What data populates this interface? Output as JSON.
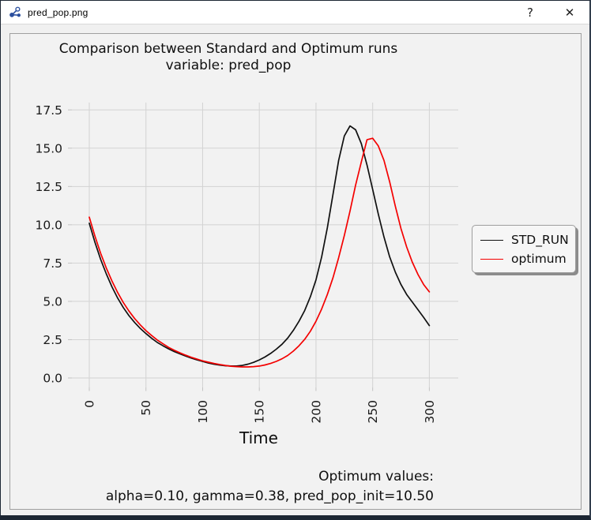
{
  "window": {
    "title": "pred_pop.png",
    "help_glyph": "?",
    "close_glyph": "✕",
    "icons": {
      "app": "molecule-icon",
      "help": "help-icon",
      "close": "close-icon"
    }
  },
  "colors": {
    "window_bg": "#f0f0f0",
    "titlebar_bg": "#ffffff",
    "figure_bg": "#f2f2f2",
    "grid": "#d3d3d3",
    "std_run": "#101010",
    "optimum": "#f40000",
    "legend_shadow": "#8c8c8c"
  },
  "chart_data": {
    "type": "line",
    "title_line1": "Comparison between Standard and Optimum runs",
    "title_line2": "variable: pred_pop",
    "xlabel": "Time",
    "ylabel": "",
    "grid": true,
    "xlim": [
      -15,
      325
    ],
    "ylim": [
      -0.65,
      18.1
    ],
    "x_ticks": [
      0,
      50,
      100,
      150,
      200,
      250,
      300
    ],
    "y_ticks": [
      "0.0",
      "2.5",
      "5.0",
      "7.5",
      "10.0",
      "12.5",
      "15.0",
      "17.5"
    ],
    "legend": {
      "position": "right-outside",
      "entries": [
        {
          "label": "STD_RUN",
          "color": "#101010"
        },
        {
          "label": "optimum",
          "color": "#f40000"
        }
      ]
    },
    "x": [
      0,
      5,
      10,
      15,
      20,
      25,
      30,
      35,
      40,
      45,
      50,
      55,
      60,
      65,
      70,
      75,
      80,
      85,
      90,
      95,
      100,
      105,
      110,
      115,
      120,
      125,
      130,
      135,
      140,
      145,
      150,
      155,
      160,
      165,
      170,
      175,
      180,
      185,
      190,
      195,
      200,
      205,
      210,
      215,
      220,
      225,
      230,
      235,
      240,
      245,
      250,
      255,
      260,
      265,
      270,
      275,
      280,
      285,
      290,
      295,
      300
    ],
    "series": [
      {
        "name": "STD_RUN",
        "color": "#101010",
        "values": [
          10.1,
          8.85,
          7.75,
          6.8,
          5.95,
          5.22,
          4.6,
          4.07,
          3.62,
          3.23,
          2.9,
          2.59,
          2.32,
          2.1,
          1.9,
          1.72,
          1.57,
          1.43,
          1.3,
          1.18,
          1.08,
          0.98,
          0.9,
          0.84,
          0.8,
          0.78,
          0.78,
          0.82,
          0.9,
          1.02,
          1.18,
          1.37,
          1.6,
          1.88,
          2.2,
          2.6,
          3.1,
          3.7,
          4.4,
          5.3,
          6.4,
          7.9,
          9.8,
          12.0,
          14.2,
          15.8,
          16.45,
          16.2,
          15.3,
          13.9,
          12.3,
          10.7,
          9.2,
          7.9,
          6.9,
          6.1,
          5.45,
          4.95,
          4.45,
          3.95,
          3.42
        ]
      },
      {
        "name": "optimum",
        "color": "#f40000",
        "values": [
          10.5,
          9.25,
          8.15,
          7.18,
          6.33,
          5.58,
          4.93,
          4.37,
          3.88,
          3.46,
          3.09,
          2.77,
          2.48,
          2.23,
          2.0,
          1.81,
          1.64,
          1.49,
          1.35,
          1.23,
          1.12,
          1.03,
          0.95,
          0.88,
          0.82,
          0.77,
          0.74,
          0.72,
          0.72,
          0.74,
          0.78,
          0.85,
          0.95,
          1.08,
          1.25,
          1.47,
          1.75,
          2.1,
          2.52,
          3.05,
          3.7,
          4.5,
          5.45,
          6.55,
          7.85,
          9.3,
          10.9,
          12.6,
          14.1,
          15.55,
          15.65,
          15.15,
          14.2,
          12.8,
          11.2,
          9.75,
          8.55,
          7.55,
          6.75,
          6.1,
          5.62
        ]
      }
    ],
    "annotation": {
      "line1": "Optimum values:",
      "line2": "alpha=0.10, gamma=0.38, pred_pop_init=10.50"
    }
  }
}
